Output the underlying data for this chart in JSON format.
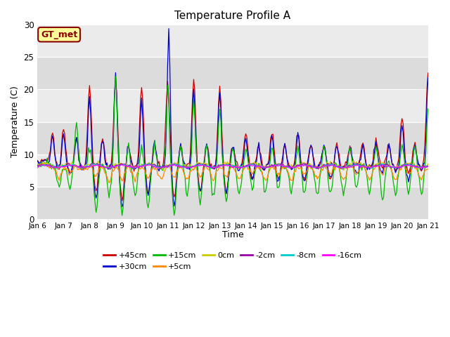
{
  "title": "Temperature Profile A",
  "xlabel": "Time",
  "ylabel": "Temperature (C)",
  "annotation": "GT_met",
  "ylim": [
    0,
    30
  ],
  "bg_outer": "#e8e8e8",
  "band_dark": "#dcdcdc",
  "band_light": "#ebebeb",
  "series_colors": {
    "+45cm": "#cc0000",
    "+30cm": "#0000cc",
    "+15cm": "#00bb00",
    "+5cm": "#ff8800",
    "0cm": "#cccc00",
    "-2cm": "#9900aa",
    "-8cm": "#00cccc",
    "-16cm": "#ff00ff"
  },
  "xtick_labels": [
    "Jan 6",
    "Jan 7",
    "Jan 8",
    "Jan 9",
    "Jan 10",
    "Jan 11",
    "Jan 12",
    "Jan 13",
    "Jan 14",
    "Jan 15",
    "Jan 16",
    "Jan 17",
    "Jan 18",
    "Jan 19",
    "Jan 20",
    "Jan 21"
  ],
  "ytick_vals": [
    0,
    5,
    10,
    15,
    20,
    25,
    30
  ],
  "legend_row1": [
    "+45cm",
    "+30cm",
    "+15cm",
    "+5cm",
    "0cm",
    "-2cm"
  ],
  "legend_row2": [
    "-8cm",
    "-16cm"
  ]
}
